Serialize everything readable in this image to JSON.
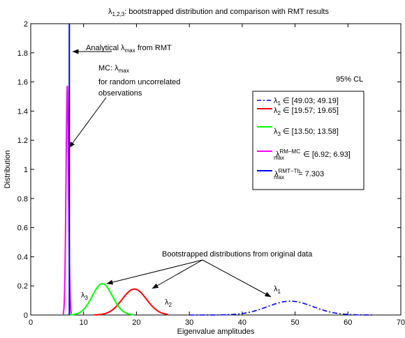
{
  "chart_data": {
    "type": "line",
    "title": "λ1,2,3: bootstrapped distribution and comparison with RMT results",
    "title_parts": {
      "main": "λ",
      "sub": "1,2,3",
      "rest": ": bootstrapped distribution and comparison with RMT results"
    },
    "xlabel": "Eigenvalue amplitudes",
    "ylabel": "Distribution",
    "xlim": [
      0,
      70
    ],
    "ylim": [
      0,
      2
    ],
    "xticks": [
      "0",
      "10",
      "20",
      "30",
      "40",
      "50",
      "60",
      "70"
    ],
    "yticks": [
      "0",
      "0.2",
      "0.4",
      "0.6",
      "0.8",
      "1",
      "1.2",
      "1.4",
      "1.6",
      "1.8",
      "2"
    ],
    "grid": false,
    "legend_position": "right",
    "legend_header": "95% CL",
    "series": [
      {
        "key": "l1",
        "color": "#0000ff",
        "style": "dashdot",
        "shape": "gaussian",
        "mean": 49.1,
        "sd": 4.3,
        "peak": 0.095,
        "xrange": [
          30,
          65
        ],
        "legend": {
          "sym": "λ",
          "sub": "1",
          "sup": "",
          "rest": " ∈ [49.03; 49.19]"
        }
      },
      {
        "key": "l2",
        "color": "#ff0000",
        "style": "solid",
        "shape": "gaussian",
        "mean": 19.6,
        "sd": 2.3,
        "peak": 0.178,
        "xrange": [
          12,
          26
        ],
        "legend": {
          "sym": "λ",
          "sub": "2",
          "sup": "",
          "rest": " ∈ [19.57; 19.65]"
        }
      },
      {
        "key": "l3",
        "color": "#00ff00",
        "style": "solid",
        "shape": "gaussian",
        "mean": 13.55,
        "sd": 1.9,
        "peak": 0.215,
        "xrange": [
          7.3,
          19.5
        ],
        "legend": {
          "sym": "λ",
          "sub": "3",
          "sup": "",
          "rest": " ∈ [13.50; 13.58]"
        }
      },
      {
        "key": "mc",
        "color": "#ff00ff",
        "style": "solid",
        "shape": "gaussian",
        "mean": 6.92,
        "sd": 0.24,
        "peak": 1.57,
        "xrange": [
          6.1,
          7.7
        ],
        "legend": {
          "sym": "λ",
          "sub": "max",
          "sup": "RM−MC",
          "rest": " ∈ [6.92; 6.93]"
        }
      },
      {
        "key": "th",
        "color": "#0000ff",
        "style": "solid",
        "shape": "vline",
        "x": 7.303,
        "legend": {
          "sym": "λ",
          "sub": "max",
          "sup": "RMT−Th",
          "rest": "= 7.303"
        }
      }
    ],
    "annotations": {
      "analytical": {
        "pre": "Analytical λ",
        "sub": "max",
        "post": " from RMT"
      },
      "mc": {
        "line1_pre": "MC: λ",
        "line1_sub": "max",
        "line2": "for random uncorrelated",
        "line3": "observations"
      },
      "bootstrap": "Bootstrapped distributions from original data",
      "curve_labels": [
        {
          "sym": "λ",
          "sub": "3"
        },
        {
          "sym": "λ",
          "sub": "2"
        },
        {
          "sym": "λ",
          "sub": "1"
        }
      ]
    }
  }
}
